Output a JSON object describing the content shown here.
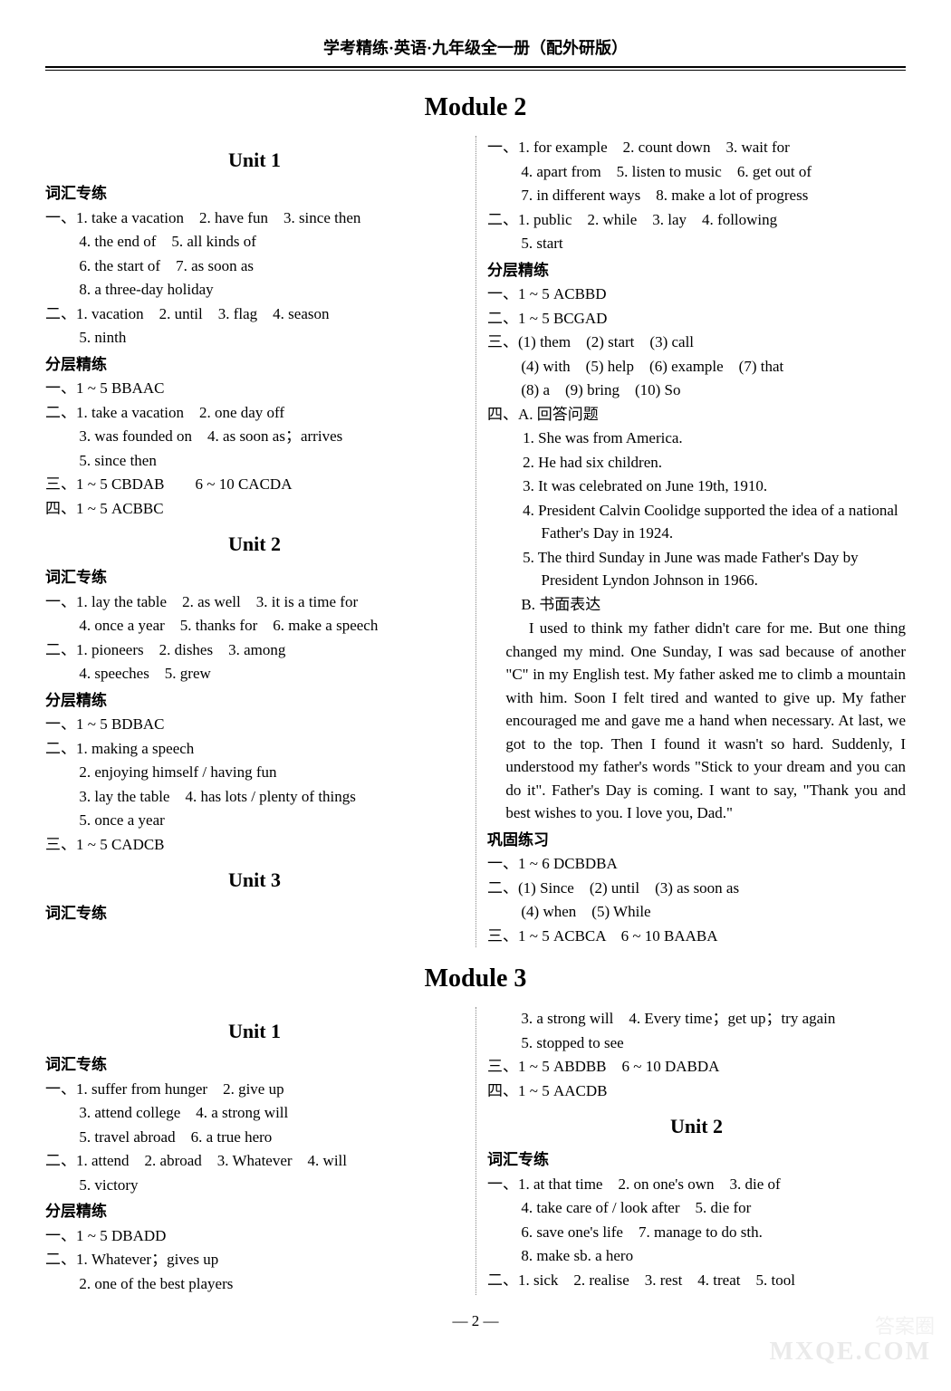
{
  "header": "学考精练·英语·九年级全一册（配外研版）",
  "modules": {
    "m2": {
      "title": "Module 2"
    },
    "m3": {
      "title": "Module 3"
    }
  },
  "m2": {
    "u1": {
      "title": "Unit 1",
      "cihui": "词汇专练",
      "yi": "一、1. take a vacation　2. have fun　3. since then",
      "yi2": "4. the end of　5. all kinds of",
      "yi3": "6. the start of　7. as soon as",
      "yi4": "8. a three-day holiday",
      "er": "二、1. vacation　2. until　3. flag　4. season",
      "er2": "5. ninth",
      "fenceng": "分层精练",
      "f_yi": "一、1 ~ 5 BBAAC",
      "f_er": "二、1. take a vacation　2. one day off",
      "f_er2": "3. was founded on　4. as soon as；arrives",
      "f_er3": "5. since then",
      "f_san": "三、1 ~ 5 CBDAB　　6 ~ 10 CACDA",
      "f_si": "四、1 ~ 5 ACBBC"
    },
    "u2": {
      "title": "Unit 2",
      "cihui": "词汇专练",
      "yi": "一、1. lay the table　2. as well　3. it is a time for",
      "yi2": "4. once a year　5. thanks for　6. make a speech",
      "er": "二、1. pioneers　2. dishes　3. among",
      "er2": "4. speeches　5. grew",
      "fenceng": "分层精练",
      "f_yi": "一、1 ~ 5 BDBAC",
      "f_er": "二、1. making a speech",
      "f_er2": "2. enjoying himself / having fun",
      "f_er3": "3. lay the table　4. has lots / plenty of things",
      "f_er4": "5. once a year",
      "f_san": "三、1 ~ 5 CADCB"
    },
    "u3": {
      "title": "Unit 3",
      "cihui": "词汇专练",
      "yi": "一、1. for example　2. count down　3. wait for",
      "yi2": "4. apart from　5. listen to music　6. get out of",
      "yi3": "7. in different ways　8. make a lot of progress",
      "er": "二、1. public　2. while　3. lay　4. following",
      "er2": "5. start",
      "fenceng": "分层精练",
      "f_yi": "一、1 ~ 5 ACBBD",
      "f_er": "二、1 ~ 5 BCGAD",
      "f_san": "三、(1) them　(2) start　(3) call",
      "f_san2": "(4) with　(5) help　(6) example　(7) that",
      "f_san3": "(8) a　(9) bring　(10) So",
      "f_si": "四、A. 回答问题",
      "a1": "1. She was from America.",
      "a2": "2. He had six children.",
      "a3": "3. It was celebrated on June 19th, 1910.",
      "a4": "4. President Calvin Coolidge supported the idea of a national Father's Day in 1924.",
      "a5": "5. The third Sunday in June was made Father's Day by President Lyndon Johnson in 1966.",
      "b": "B. 书面表达",
      "essay": "I used to think my father didn't care for me. But one thing changed my mind. One Sunday, I was sad because of another \"C\" in my English test. My father asked me to climb a mountain with him. Soon I felt tired and wanted to give up. My father encouraged me and gave me a hand when necessary. At last, we got to the top. Then I found it wasn't so hard. Suddenly, I understood my father's words \"Stick to your dream and you can do it\". Father's Day is coming. I want to say, \"Thank you and best wishes to you. I love you, Dad.\"",
      "gonggu": "巩固练习",
      "g_yi": "一、1 ~ 6 DCBDBA",
      "g_er": "二、(1) Since　(2) until　(3) as soon as",
      "g_er2": "(4) when　(5) While",
      "g_san": "三、1 ~ 5 ACBCA　6 ~ 10 BAABA"
    }
  },
  "m3": {
    "u1": {
      "title": "Unit 1",
      "cihui": "词汇专练",
      "yi": "一、1. suffer from hunger　2. give up",
      "yi2": "3. attend college　4. a strong will",
      "yi3": "5. travel abroad　6. a true hero",
      "er": "二、1. attend　2. abroad　3. Whatever　4. will",
      "er2": "5. victory",
      "fenceng": "分层精练",
      "f_yi": "一、1 ~ 5 DBADD",
      "f_er": "二、1. Whatever；gives up",
      "f_er2": "2. one of the best players",
      "f_er3": "3. a strong will　4. Every time；get up；try again",
      "f_er4": "5. stopped to see",
      "f_san": "三、1 ~ 5 ABDBB　6 ~ 10 DABDA",
      "f_si": "四、1 ~ 5 AACDB"
    },
    "u2": {
      "title": "Unit 2",
      "cihui": "词汇专练",
      "yi": "一、1. at that time　2. on one's own　3. die of",
      "yi2": "4. take care of / look after　5. die for",
      "yi3": "6. save one's life　7. manage to do sth.",
      "yi4": "8. make sb. a hero",
      "er": "二、1. sick　2. realise　3. rest　4. treat　5. tool"
    }
  },
  "page": "— 2 —",
  "watermark1": "答案圈",
  "watermark2": "MXQE.COM"
}
